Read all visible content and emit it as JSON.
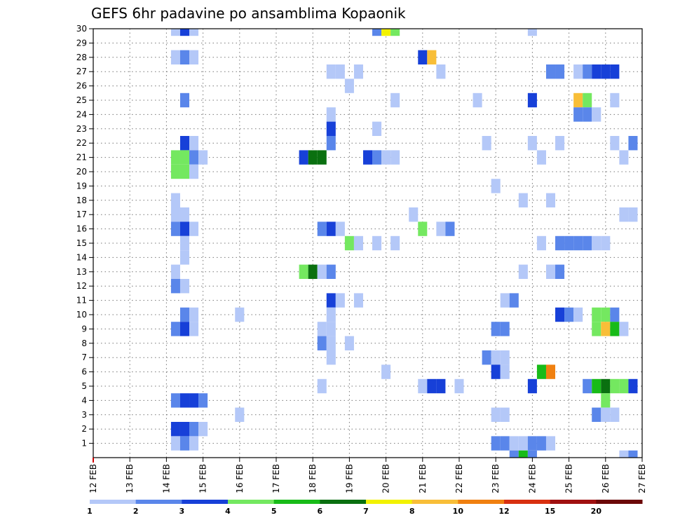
{
  "chart_data": {
    "type": "heatmap",
    "title": "GEFS 6hr padavine po ansamblima Kopaonik",
    "y_ticks": [
      "1",
      "2",
      "3",
      "4",
      "5",
      "6",
      "7",
      "8",
      "9",
      "10",
      "11",
      "12",
      "13",
      "14",
      "15",
      "16",
      "17",
      "18",
      "19",
      "20",
      "21",
      "22",
      "23",
      "24",
      "25",
      "26",
      "27",
      "28",
      "29",
      "30"
    ],
    "x_ticks": [
      "12 FEB",
      "13 FEB",
      "14 FEB",
      "15 FEB",
      "16 FEB",
      "17 FEB",
      "18 FEB",
      "19 FEB",
      "20 FEB",
      "21 FEB",
      "22 FEB",
      "23 FEB",
      "24 FEB",
      "25 FEB",
      "26 FEB",
      "27 FEB"
    ],
    "xlim": [
      "12 FEB 00Z",
      "27 FEB 00Z"
    ],
    "ylim": [
      0,
      30
    ],
    "grid": true,
    "legend_placement": "bottom",
    "levels": [
      "1",
      "2",
      "3",
      "4",
      "5",
      "6",
      "7",
      "8",
      "10",
      "12",
      "15",
      "20"
    ],
    "colors": [
      "#b4c8f8",
      "#5a86ea",
      "#1740d8",
      "#74e860",
      "#18bb18",
      "#0a7010",
      "#f2f200",
      "#f8be38",
      "#f08010",
      "#d83010",
      "#a01010",
      "#6c0808"
    ],
    "x_units": "days from 12 FEB 00Z",
    "cells": [
      {
        "member": 30,
        "day": 14.25,
        "cls": 0
      },
      {
        "member": 30,
        "day": 14.5,
        "cls": 2
      },
      {
        "member": 30,
        "day": 14.75,
        "cls": 0
      },
      {
        "member": 30,
        "day": 19.75,
        "cls": 1
      },
      {
        "member": 30,
        "day": 20.0,
        "cls": 6
      },
      {
        "member": 30,
        "day": 20.25,
        "cls": 3
      },
      {
        "member": 30,
        "day": 24.0,
        "cls": 0
      },
      {
        "member": 28,
        "day": 14.25,
        "cls": 0
      },
      {
        "member": 28,
        "day": 14.5,
        "cls": 1
      },
      {
        "member": 28,
        "day": 14.75,
        "cls": 0
      },
      {
        "member": 28,
        "day": 21.0,
        "cls": 2
      },
      {
        "member": 28,
        "day": 21.25,
        "cls": 7
      },
      {
        "member": 27,
        "day": 18.5,
        "cls": 0
      },
      {
        "member": 27,
        "day": 18.75,
        "cls": 0
      },
      {
        "member": 27,
        "day": 19.25,
        "cls": 0
      },
      {
        "member": 27,
        "day": 21.5,
        "cls": 0
      },
      {
        "member": 27,
        "day": 24.5,
        "cls": 1
      },
      {
        "member": 27,
        "day": 24.75,
        "cls": 1
      },
      {
        "member": 27,
        "day": 25.25,
        "cls": 0
      },
      {
        "member": 27,
        "day": 25.5,
        "cls": 1
      },
      {
        "member": 27,
        "day": 25.75,
        "cls": 2
      },
      {
        "member": 27,
        "day": 26.0,
        "cls": 2
      },
      {
        "member": 27,
        "day": 26.25,
        "cls": 2
      },
      {
        "member": 26,
        "day": 19.0,
        "cls": 0
      },
      {
        "member": 25,
        "day": 14.5,
        "cls": 1
      },
      {
        "member": 25,
        "day": 20.25,
        "cls": 0
      },
      {
        "member": 25,
        "day": 22.5,
        "cls": 0
      },
      {
        "member": 25,
        "day": 24.0,
        "cls": 2
      },
      {
        "member": 25,
        "day": 25.25,
        "cls": 7
      },
      {
        "member": 25,
        "day": 25.5,
        "cls": 3
      },
      {
        "member": 25,
        "day": 26.25,
        "cls": 0
      },
      {
        "member": 24,
        "day": 18.5,
        "cls": 0
      },
      {
        "member": 24,
        "day": 25.25,
        "cls": 1
      },
      {
        "member": 24,
        "day": 25.5,
        "cls": 1
      },
      {
        "member": 24,
        "day": 25.75,
        "cls": 0
      },
      {
        "member": 23,
        "day": 18.5,
        "cls": 2
      },
      {
        "member": 23,
        "day": 19.75,
        "cls": 0
      },
      {
        "member": 22,
        "day": 14.5,
        "cls": 2
      },
      {
        "member": 22,
        "day": 14.75,
        "cls": 0
      },
      {
        "member": 22,
        "day": 18.5,
        "cls": 1
      },
      {
        "member": 22,
        "day": 22.75,
        "cls": 0
      },
      {
        "member": 22,
        "day": 24.0,
        "cls": 0
      },
      {
        "member": 22,
        "day": 24.75,
        "cls": 0
      },
      {
        "member": 22,
        "day": 26.25,
        "cls": 0
      },
      {
        "member": 22,
        "day": 26.75,
        "cls": 1
      },
      {
        "member": 21,
        "day": 14.25,
        "cls": 3
      },
      {
        "member": 21,
        "day": 14.5,
        "cls": 3
      },
      {
        "member": 21,
        "day": 14.75,
        "cls": 1
      },
      {
        "member": 21,
        "day": 15.0,
        "cls": 0
      },
      {
        "member": 21,
        "day": 17.75,
        "cls": 2
      },
      {
        "member": 21,
        "day": 18.0,
        "cls": 5
      },
      {
        "member": 21,
        "day": 18.25,
        "cls": 5
      },
      {
        "member": 21,
        "day": 19.5,
        "cls": 2
      },
      {
        "member": 21,
        "day": 19.75,
        "cls": 1
      },
      {
        "member": 21,
        "day": 20.0,
        "cls": 0
      },
      {
        "member": 21,
        "day": 20.25,
        "cls": 0
      },
      {
        "member": 21,
        "day": 24.25,
        "cls": 0
      },
      {
        "member": 21,
        "day": 26.5,
        "cls": 0
      },
      {
        "member": 20,
        "day": 14.25,
        "cls": 3
      },
      {
        "member": 20,
        "day": 14.5,
        "cls": 3
      },
      {
        "member": 20,
        "day": 14.75,
        "cls": 0
      },
      {
        "member": 19,
        "day": 23.0,
        "cls": 0
      },
      {
        "member": 18,
        "day": 14.25,
        "cls": 0
      },
      {
        "member": 18,
        "day": 23.75,
        "cls": 0
      },
      {
        "member": 18,
        "day": 24.5,
        "cls": 0
      },
      {
        "member": 17,
        "day": 14.25,
        "cls": 0
      },
      {
        "member": 17,
        "day": 14.5,
        "cls": 0
      },
      {
        "member": 17,
        "day": 20.75,
        "cls": 0
      },
      {
        "member": 17,
        "day": 26.5,
        "cls": 0
      },
      {
        "member": 17,
        "day": 26.75,
        "cls": 0
      },
      {
        "member": 16,
        "day": 14.25,
        "cls": 1
      },
      {
        "member": 16,
        "day": 14.5,
        "cls": 2
      },
      {
        "member": 16,
        "day": 14.75,
        "cls": 0
      },
      {
        "member": 16,
        "day": 18.25,
        "cls": 1
      },
      {
        "member": 16,
        "day": 18.5,
        "cls": 2
      },
      {
        "member": 16,
        "day": 18.75,
        "cls": 0
      },
      {
        "member": 16,
        "day": 21.0,
        "cls": 3
      },
      {
        "member": 16,
        "day": 21.5,
        "cls": 0
      },
      {
        "member": 16,
        "day": 21.75,
        "cls": 1
      },
      {
        "member": 15,
        "day": 14.5,
        "cls": 0
      },
      {
        "member": 15,
        "day": 19.0,
        "cls": 3
      },
      {
        "member": 15,
        "day": 19.25,
        "cls": 0
      },
      {
        "member": 15,
        "day": 19.75,
        "cls": 0
      },
      {
        "member": 15,
        "day": 20.25,
        "cls": 0
      },
      {
        "member": 15,
        "day": 24.25,
        "cls": 0
      },
      {
        "member": 15,
        "day": 24.75,
        "cls": 1
      },
      {
        "member": 15,
        "day": 25.0,
        "cls": 1
      },
      {
        "member": 15,
        "day": 25.25,
        "cls": 1
      },
      {
        "member": 15,
        "day": 25.5,
        "cls": 1
      },
      {
        "member": 15,
        "day": 25.75,
        "cls": 0
      },
      {
        "member": 15,
        "day": 26.0,
        "cls": 0
      },
      {
        "member": 14,
        "day": 14.5,
        "cls": 0
      },
      {
        "member": 13,
        "day": 14.25,
        "cls": 0
      },
      {
        "member": 13,
        "day": 17.75,
        "cls": 3
      },
      {
        "member": 13,
        "day": 18.0,
        "cls": 5
      },
      {
        "member": 13,
        "day": 18.25,
        "cls": 0
      },
      {
        "member": 13,
        "day": 18.5,
        "cls": 1
      },
      {
        "member": 13,
        "day": 23.75,
        "cls": 0
      },
      {
        "member": 13,
        "day": 24.5,
        "cls": 0
      },
      {
        "member": 13,
        "day": 24.75,
        "cls": 1
      },
      {
        "member": 12,
        "day": 14.25,
        "cls": 1
      },
      {
        "member": 12,
        "day": 14.5,
        "cls": 0
      },
      {
        "member": 11,
        "day": 18.5,
        "cls": 2
      },
      {
        "member": 11,
        "day": 18.75,
        "cls": 0
      },
      {
        "member": 11,
        "day": 19.25,
        "cls": 0
      },
      {
        "member": 11,
        "day": 23.25,
        "cls": 0
      },
      {
        "member": 11,
        "day": 23.5,
        "cls": 1
      },
      {
        "member": 10,
        "day": 14.5,
        "cls": 1
      },
      {
        "member": 10,
        "day": 14.75,
        "cls": 0
      },
      {
        "member": 10,
        "day": 16.0,
        "cls": 0
      },
      {
        "member": 10,
        "day": 18.5,
        "cls": 0
      },
      {
        "member": 10,
        "day": 24.75,
        "cls": 2
      },
      {
        "member": 10,
        "day": 25.0,
        "cls": 1
      },
      {
        "member": 10,
        "day": 25.25,
        "cls": 0
      },
      {
        "member": 10,
        "day": 25.75,
        "cls": 3
      },
      {
        "member": 10,
        "day": 26.0,
        "cls": 3
      },
      {
        "member": 10,
        "day": 26.25,
        "cls": 1
      },
      {
        "member": 9,
        "day": 14.25,
        "cls": 1
      },
      {
        "member": 9,
        "day": 14.5,
        "cls": 2
      },
      {
        "member": 9,
        "day": 14.75,
        "cls": 0
      },
      {
        "member": 9,
        "day": 18.25,
        "cls": 0
      },
      {
        "member": 9,
        "day": 18.5,
        "cls": 0
      },
      {
        "member": 9,
        "day": 23.0,
        "cls": 1
      },
      {
        "member": 9,
        "day": 23.25,
        "cls": 1
      },
      {
        "member": 9,
        "day": 25.75,
        "cls": 3
      },
      {
        "member": 9,
        "day": 26.0,
        "cls": 7
      },
      {
        "member": 9,
        "day": 26.25,
        "cls": 4
      },
      {
        "member": 9,
        "day": 26.5,
        "cls": 0
      },
      {
        "member": 8,
        "day": 18.25,
        "cls": 1
      },
      {
        "member": 8,
        "day": 18.5,
        "cls": 0
      },
      {
        "member": 8,
        "day": 19.0,
        "cls": 0
      },
      {
        "member": 7,
        "day": 18.5,
        "cls": 0
      },
      {
        "member": 7,
        "day": 22.75,
        "cls": 1
      },
      {
        "member": 7,
        "day": 23.0,
        "cls": 0
      },
      {
        "member": 7,
        "day": 23.25,
        "cls": 0
      },
      {
        "member": 6,
        "day": 20.0,
        "cls": 0
      },
      {
        "member": 6,
        "day": 23.0,
        "cls": 2
      },
      {
        "member": 6,
        "day": 23.25,
        "cls": 0
      },
      {
        "member": 6,
        "day": 24.25,
        "cls": 4
      },
      {
        "member": 6,
        "day": 24.5,
        "cls": 8
      },
      {
        "member": 5,
        "day": 18.25,
        "cls": 0
      },
      {
        "member": 5,
        "day": 21.0,
        "cls": 0
      },
      {
        "member": 5,
        "day": 21.25,
        "cls": 2
      },
      {
        "member": 5,
        "day": 21.5,
        "cls": 2
      },
      {
        "member": 5,
        "day": 22.0,
        "cls": 0
      },
      {
        "member": 5,
        "day": 24.0,
        "cls": 2
      },
      {
        "member": 5,
        "day": 25.5,
        "cls": 1
      },
      {
        "member": 5,
        "day": 25.75,
        "cls": 4
      },
      {
        "member": 5,
        "day": 26.0,
        "cls": 5
      },
      {
        "member": 5,
        "day": 26.25,
        "cls": 3
      },
      {
        "member": 5,
        "day": 26.5,
        "cls": 3
      },
      {
        "member": 5,
        "day": 26.75,
        "cls": 2
      },
      {
        "member": 4,
        "day": 14.25,
        "cls": 1
      },
      {
        "member": 4,
        "day": 14.5,
        "cls": 2
      },
      {
        "member": 4,
        "day": 14.75,
        "cls": 2
      },
      {
        "member": 4,
        "day": 15.0,
        "cls": 1
      },
      {
        "member": 4,
        "day": 26.0,
        "cls": 3
      },
      {
        "member": 3,
        "day": 16.0,
        "cls": 0
      },
      {
        "member": 3,
        "day": 23.0,
        "cls": 0
      },
      {
        "member": 3,
        "day": 23.25,
        "cls": 0
      },
      {
        "member": 3,
        "day": 25.75,
        "cls": 1
      },
      {
        "member": 3,
        "day": 26.0,
        "cls": 0
      },
      {
        "member": 3,
        "day": 26.25,
        "cls": 0
      },
      {
        "member": 2,
        "day": 14.25,
        "cls": 2
      },
      {
        "member": 2,
        "day": 14.5,
        "cls": 2
      },
      {
        "member": 2,
        "day": 14.75,
        "cls": 1
      },
      {
        "member": 2,
        "day": 15.0,
        "cls": 0
      },
      {
        "member": 1,
        "day": 14.25,
        "cls": 0
      },
      {
        "member": 1,
        "day": 14.5,
        "cls": 1
      },
      {
        "member": 1,
        "day": 14.75,
        "cls": 0
      },
      {
        "member": 1,
        "day": 23.0,
        "cls": 1
      },
      {
        "member": 1,
        "day": 23.25,
        "cls": 1
      },
      {
        "member": 1,
        "day": 23.5,
        "cls": 0
      },
      {
        "member": 1,
        "day": 23.75,
        "cls": 0
      },
      {
        "member": 1,
        "day": 24.0,
        "cls": 1
      },
      {
        "member": 1,
        "day": 24.25,
        "cls": 1
      },
      {
        "member": 1,
        "day": 24.5,
        "cls": 0
      },
      {
        "member": 0,
        "day": 23.5,
        "cls": 1
      },
      {
        "member": 0,
        "day": 23.75,
        "cls": 4
      },
      {
        "member": 0,
        "day": 24.0,
        "cls": 1
      },
      {
        "member": 0,
        "day": 26.5,
        "cls": 0
      },
      {
        "member": 0,
        "day": 26.75,
        "cls": 1
      }
    ]
  }
}
